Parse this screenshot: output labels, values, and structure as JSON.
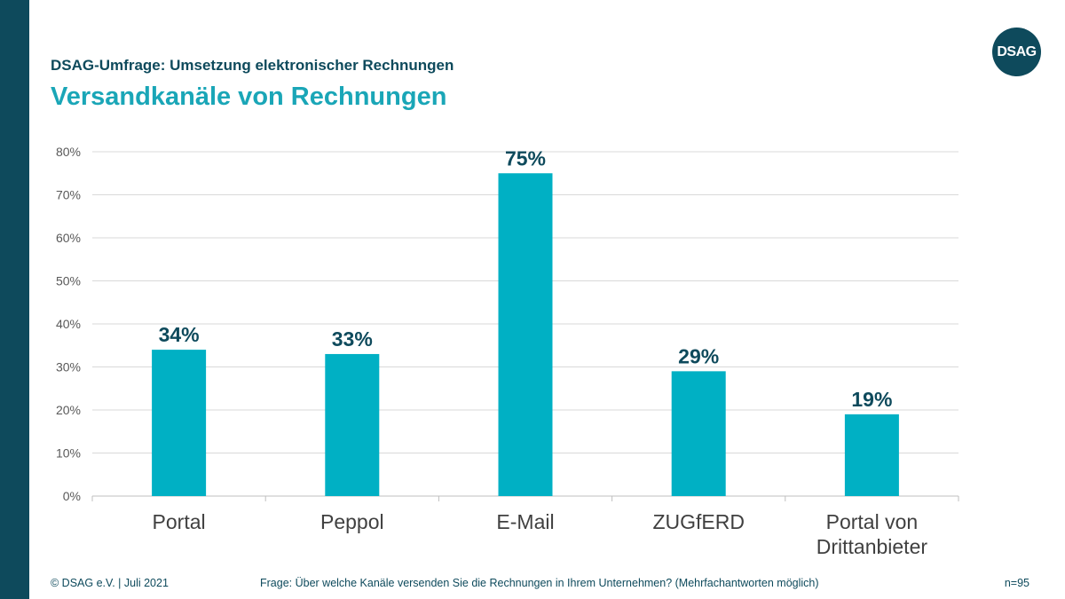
{
  "header": {
    "supertitle": "DSAG-Umfrage: Umsetzung elektronischer Rechnungen",
    "title": "Versandkanäle von Rechnungen",
    "logo_text": "DSAG"
  },
  "colors": {
    "bar": "#00b0c4",
    "label": "#0e4a5c",
    "accent_bar": "#0e4a5c",
    "title": "#1aa6b7"
  },
  "chart_data": {
    "type": "bar",
    "categories": [
      [
        "Portal"
      ],
      [
        "Peppol"
      ],
      [
        "E-Mail"
      ],
      [
        "ZUGfERD"
      ],
      [
        "Portal von",
        "Drittanbieter"
      ]
    ],
    "values": [
      0.34,
      0.33,
      0.75,
      0.29,
      0.19
    ],
    "data_labels": [
      "34%",
      "33%",
      "75%",
      "29%",
      "19%"
    ],
    "y_ticks": [
      0,
      0.1,
      0.2,
      0.3,
      0.4,
      0.5,
      0.6,
      0.7,
      0.8
    ],
    "y_tick_labels": [
      "0%",
      "10%",
      "20%",
      "30%",
      "40%",
      "50%",
      "60%",
      "70%",
      "80%"
    ],
    "ylim": [
      0,
      0.8
    ],
    "title": "Versandkanäle von Rechnungen",
    "xlabel": "",
    "ylabel": "",
    "grid": true,
    "legend": "none"
  },
  "footer": {
    "copyright": "© DSAG e.V. | Juli 2021",
    "question": "Frage: Über welche Kanäle versenden Sie die Rechnungen in Ihrem Unternehmen? (Mehrfachantworten möglich)",
    "sample": "n=95"
  }
}
